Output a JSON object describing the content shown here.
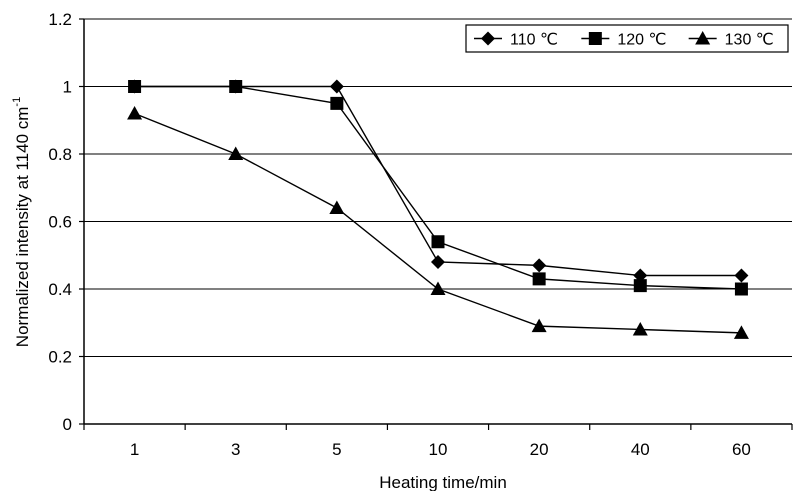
{
  "chart_data": {
    "type": "line",
    "title": "",
    "xlabel": "Heating time/min",
    "ylabel": "Normalized intensity at 1140 cm",
    "ylabel_superscript": "-1",
    "categories": [
      "1",
      "3",
      "5",
      "10",
      "20",
      "40",
      "60"
    ],
    "y_ticks": [
      "0",
      "0.2",
      "0.4",
      "0.6",
      "0.8",
      "1",
      "1.2"
    ],
    "ylim": [
      0,
      1.2
    ],
    "grid": true,
    "legend_position": "top-right",
    "series": [
      {
        "name": "110 ℃",
        "marker": "diamond",
        "values": [
          1.0,
          1.0,
          1.0,
          0.48,
          0.47,
          0.44,
          0.44
        ]
      },
      {
        "name": "120 ℃",
        "marker": "square",
        "values": [
          1.0,
          1.0,
          0.95,
          0.54,
          0.43,
          0.41,
          0.4
        ]
      },
      {
        "name": "130 ℃",
        "marker": "triangle",
        "values": [
          0.92,
          0.8,
          0.64,
          0.4,
          0.29,
          0.28,
          0.27
        ]
      }
    ]
  }
}
